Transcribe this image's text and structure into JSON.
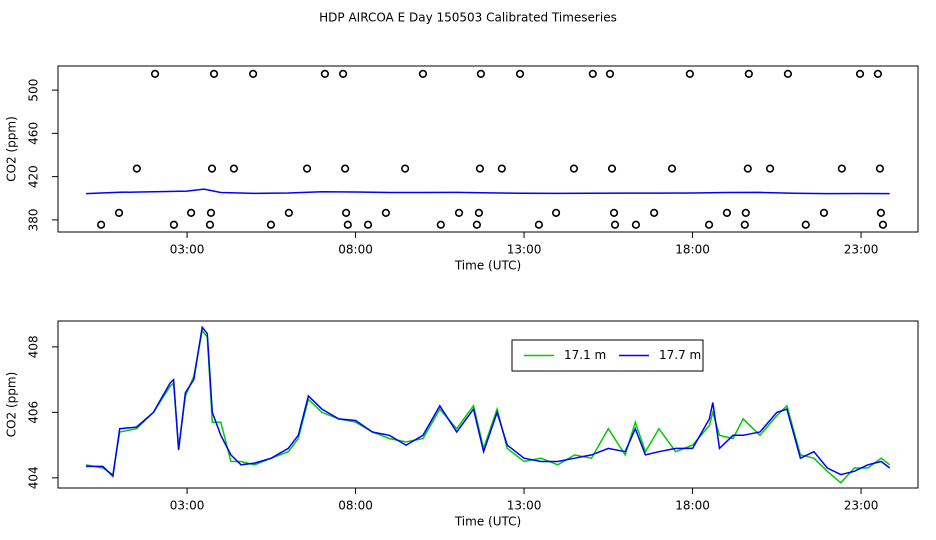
{
  "title": "HDP AIRCOA E  Day 150503  Calibrated Timeseries",
  "chart_data": [
    {
      "type": "scatter",
      "xlabel": "Time (UTC)",
      "ylabel": "CO2 (ppm)",
      "xlim": [
        -0.83,
        24.69
      ],
      "ylim": [
        368.8,
        522.3
      ],
      "xticks": [
        {
          "value": 3,
          "label": "03:00"
        },
        {
          "value": 8,
          "label": "08:00"
        },
        {
          "value": 13,
          "label": "13:00"
        },
        {
          "value": 18,
          "label": "18:00"
        },
        {
          "value": 23,
          "label": "23:00"
        }
      ],
      "yticks": [
        380,
        420,
        460,
        500
      ],
      "series": [
        {
          "type": "scatter",
          "color": "#000000",
          "x": [
            2.05,
            3.8,
            4.96,
            7.09,
            7.63,
            10.0,
            11.72,
            12.88,
            15.04,
            15.55,
            17.92,
            19.67,
            20.83,
            22.97,
            23.5,
            1.51,
            3.74,
            4.39,
            6.56,
            7.69,
            9.47,
            11.69,
            12.34,
            14.48,
            15.61,
            17.39,
            19.64,
            20.3,
            22.43,
            23.56,
            0.98,
            3.12,
            3.71,
            6.02,
            7.72,
            8.9,
            11.07,
            11.66,
            13.95,
            15.67,
            16.86,
            19.02,
            19.58,
            21.9,
            23.59,
            0.45,
            2.61,
            3.68,
            5.49,
            7.77,
            8.37,
            10.53,
            11.6,
            13.44,
            15.7,
            16.32,
            18.49,
            19.55,
            21.36,
            23.65
          ],
          "values": [
            515,
            515,
            515,
            515,
            515,
            515,
            515,
            515,
            515,
            515,
            515,
            515,
            515,
            515,
            515,
            427.4,
            427.4,
            427.4,
            427.4,
            427.4,
            427.4,
            427.4,
            427.4,
            427.4,
            427.4,
            427.4,
            427.4,
            427.4,
            427.4,
            427.4,
            386.5,
            386.5,
            386.5,
            386.5,
            386.5,
            386.5,
            386.5,
            386.5,
            386.5,
            386.5,
            386.5,
            386.5,
            386.5,
            386.5,
            386.5,
            375.5,
            375.5,
            375.5,
            375.5,
            375.5,
            375.5,
            375.5,
            375.5,
            375.5,
            375.5,
            375.5,
            375.5,
            375.5,
            375.5,
            375.5
          ]
        },
        {
          "type": "line",
          "color": "#0000ff",
          "x": [
            0,
            1,
            2,
            3,
            3.5,
            4,
            5,
            6,
            7,
            8,
            9,
            10,
            11,
            12,
            13,
            14,
            15,
            16,
            17,
            18,
            19,
            20,
            21,
            22,
            23,
            23.85
          ],
          "values": [
            404.35,
            405.5,
            406.0,
            406.6,
            408.5,
            405.3,
            404.45,
            404.9,
            406.1,
            405.75,
            405.3,
            405.3,
            405.4,
            405.0,
            404.6,
            404.5,
            404.7,
            404.8,
            404.8,
            404.9,
            405.3,
            405.4,
            404.7,
            404.3,
            404.4,
            404.3
          ]
        }
      ]
    },
    {
      "type": "line",
      "xlabel": "Time (UTC)",
      "ylabel": "CO2 (ppm)",
      "xlim": [
        -0.83,
        24.69
      ],
      "ylim": [
        403.69,
        408.79
      ],
      "xticks": [
        {
          "value": 3,
          "label": "03:00"
        },
        {
          "value": 8,
          "label": "08:00"
        },
        {
          "value": 13,
          "label": "13:00"
        },
        {
          "value": 18,
          "label": "18:00"
        },
        {
          "value": 23,
          "label": "23:00"
        }
      ],
      "yticks": [
        404,
        406,
        408
      ],
      "legend": "top",
      "x": [
        0,
        0.5,
        0.8,
        1.0,
        1.5,
        2.0,
        2.5,
        2.6,
        2.75,
        2.95,
        3.2,
        3.45,
        3.6,
        3.75,
        4.0,
        4.3,
        4.6,
        5.0,
        5.5,
        6.0,
        6.3,
        6.6,
        7.0,
        7.5,
        8.0,
        8.5,
        9.0,
        9.5,
        10.0,
        10.5,
        11.0,
        11.5,
        11.8,
        12.2,
        12.5,
        13.0,
        13.5,
        14.0,
        14.5,
        15.0,
        15.5,
        16.0,
        16.3,
        16.6,
        17.0,
        17.5,
        18.0,
        18.5,
        18.6,
        18.8,
        19.2,
        19.5,
        20.0,
        20.5,
        20.8,
        21.2,
        21.6,
        22.0,
        22.4,
        22.8,
        23.2,
        23.6,
        23.85
      ],
      "series": [
        {
          "name": "17.1 m",
          "color": "#00cc00",
          "values": [
            404.4,
            404.3,
            404.1,
            405.4,
            405.5,
            406.0,
            406.8,
            406.9,
            404.9,
            406.5,
            407.1,
            408.5,
            408.3,
            405.7,
            405.7,
            404.5,
            404.5,
            404.4,
            404.6,
            404.8,
            405.2,
            406.4,
            406.0,
            405.8,
            405.7,
            405.4,
            405.2,
            405.1,
            405.2,
            406.1,
            405.5,
            406.2,
            404.9,
            406.1,
            404.9,
            404.5,
            404.6,
            404.4,
            404.7,
            404.6,
            405.5,
            404.7,
            405.7,
            404.8,
            405.5,
            404.8,
            405.0,
            405.6,
            406.0,
            405.3,
            405.2,
            405.8,
            405.3,
            405.9,
            406.2,
            404.7,
            404.6,
            404.2,
            403.85,
            404.3,
            404.3,
            404.6,
            404.4
          ]
        },
        {
          "name": "17.7 m",
          "color": "#0000ff",
          "values": [
            404.35,
            404.35,
            404.05,
            405.5,
            405.55,
            406.0,
            406.9,
            407.0,
            404.85,
            406.6,
            407.0,
            408.6,
            408.4,
            406.0,
            405.3,
            404.7,
            404.4,
            404.45,
            404.6,
            404.9,
            405.3,
            406.5,
            406.1,
            405.8,
            405.75,
            405.4,
            405.3,
            405.0,
            405.3,
            406.2,
            405.4,
            406.1,
            404.8,
            406.0,
            405.0,
            404.6,
            404.5,
            404.5,
            404.6,
            404.7,
            404.9,
            404.8,
            405.5,
            404.7,
            404.8,
            404.9,
            404.9,
            405.8,
            406.3,
            404.9,
            405.3,
            405.3,
            405.4,
            406.0,
            406.1,
            404.6,
            404.8,
            404.3,
            404.1,
            404.2,
            404.4,
            404.5,
            404.3
          ]
        }
      ]
    }
  ]
}
